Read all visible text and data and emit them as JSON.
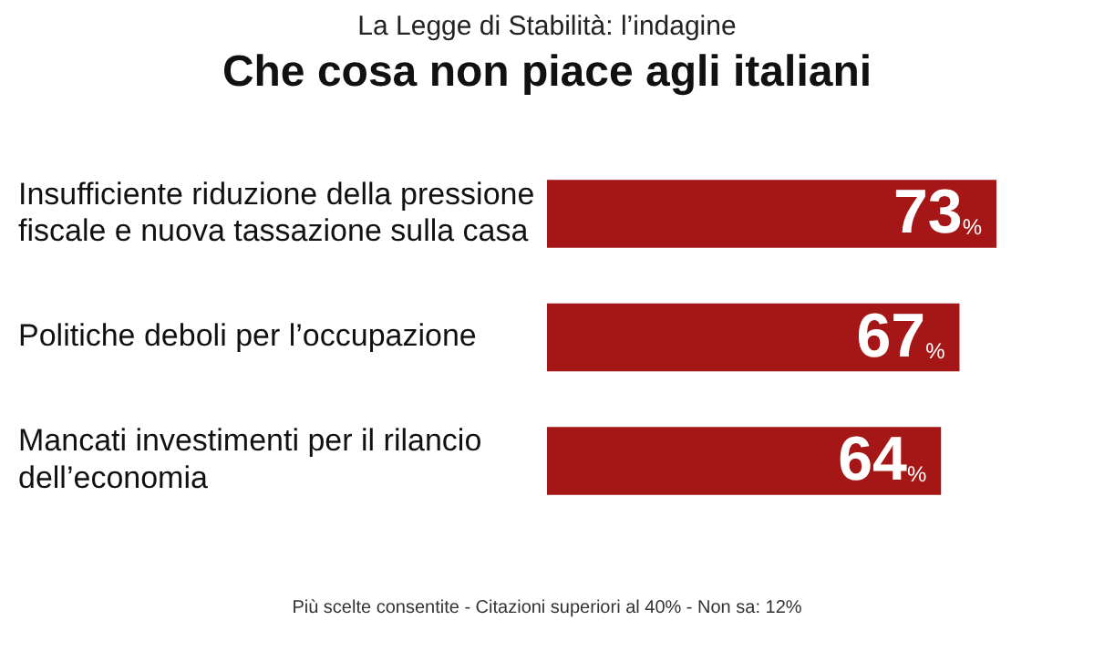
{
  "chart_data": {
    "type": "bar",
    "orientation": "horizontal",
    "subtitle": "La Legge di Stabilità: l’indagine",
    "title": "Che cosa non piace agli italiani",
    "categories": [
      "Insufficiente riduzione della pressione fiscale e nuova tassazione sulla casa",
      "Politiche deboli per l’occupazione",
      "Mancati investimenti per il rilancio dell’economia"
    ],
    "values": [
      73,
      67,
      64
    ],
    "value_labels": [
      "73%",
      "67%",
      "64%"
    ],
    "color": "#a51616",
    "annotations": [
      "Più scelte consentite - Citazioni superiori al 40% - Non sa: 12%"
    ]
  }
}
